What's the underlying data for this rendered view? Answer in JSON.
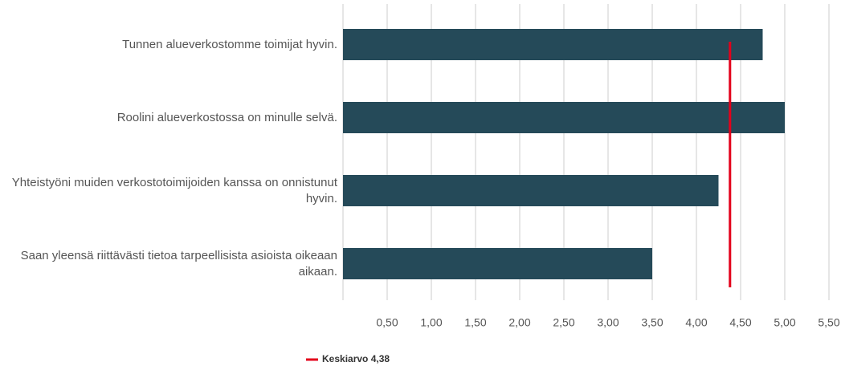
{
  "chart_data": {
    "type": "bar",
    "orientation": "horizontal",
    "categories": [
      "Tunnen alueverkostomme toimijat hyvin.",
      "Roolini alueverkostossa on minulle selvä.",
      "Yhteistyöni muiden verkostotoimijoiden kanssa on onnistunut hyvin.",
      "Saan yleensä riittävästi tietoa tarpeellisista asioista oikeaan aikaan."
    ],
    "values": [
      4.75,
      5.0,
      4.25,
      3.5
    ],
    "color": "#254a59",
    "xlim": [
      0,
      5.5
    ],
    "xticks": [
      {
        "value": 0.5,
        "label": "0,50"
      },
      {
        "value": 1.0,
        "label": "1,00"
      },
      {
        "value": 1.5,
        "label": "1,50"
      },
      {
        "value": 2.0,
        "label": "2,00"
      },
      {
        "value": 2.5,
        "label": "2,50"
      },
      {
        "value": 3.0,
        "label": "3,00"
      },
      {
        "value": 3.5,
        "label": "3,50"
      },
      {
        "value": 4.0,
        "label": "4,00"
      },
      {
        "value": 4.5,
        "label": "4,50"
      },
      {
        "value": 5.0,
        "label": "5,00"
      },
      {
        "value": 5.5,
        "label": "5,50"
      }
    ],
    "grid": true,
    "mean": {
      "name": "Keskiarvo 4,38",
      "value": 4.38,
      "color": "#e3001b"
    }
  }
}
